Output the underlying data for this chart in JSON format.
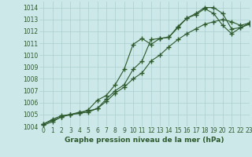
{
  "title": "Graphe pression niveau de la mer (hPa)",
  "xlim": [
    -0.5,
    23
  ],
  "ylim": [
    1004,
    1014.5
  ],
  "yticks": [
    1004,
    1005,
    1006,
    1007,
    1008,
    1009,
    1010,
    1011,
    1012,
    1013,
    1014
  ],
  "xticks": [
    0,
    1,
    2,
    3,
    4,
    5,
    6,
    7,
    8,
    9,
    10,
    11,
    12,
    13,
    14,
    15,
    16,
    17,
    18,
    19,
    20,
    21,
    22,
    23
  ],
  "bg_color": "#cce8e8",
  "grid_color": "#aacfcf",
  "line_color": "#2d5a2d",
  "line1_x": [
    0,
    1,
    2,
    3,
    4,
    5,
    6,
    7,
    8,
    9,
    10,
    11,
    12,
    13,
    14,
    15,
    16,
    17,
    18,
    19,
    20,
    21,
    22,
    23
  ],
  "line1_y": [
    1004.2,
    1004.6,
    1004.9,
    1005.0,
    1005.1,
    1005.4,
    1006.2,
    1006.6,
    1007.5,
    1008.8,
    1010.9,
    1011.4,
    1010.9,
    1011.4,
    1011.5,
    1012.3,
    1013.1,
    1013.5,
    1014.0,
    1014.0,
    1013.5,
    1012.2,
    1012.3,
    1012.6
  ],
  "line2_x": [
    0,
    1,
    2,
    3,
    4,
    5,
    6,
    7,
    8,
    9,
    10,
    11,
    12,
    13,
    14,
    15,
    16,
    17,
    18,
    19,
    20,
    21,
    22,
    23
  ],
  "line2_y": [
    1004.1,
    1004.4,
    1004.8,
    1005.0,
    1005.1,
    1005.2,
    1005.5,
    1006.1,
    1006.8,
    1007.3,
    1008.0,
    1008.5,
    1009.5,
    1010.0,
    1010.7,
    1011.3,
    1011.8,
    1012.2,
    1012.6,
    1012.8,
    1013.0,
    1012.8,
    1012.5,
    1012.7
  ],
  "line3_x": [
    0,
    1,
    2,
    3,
    4,
    5,
    6,
    7,
    8,
    9,
    10,
    11,
    12,
    13,
    14,
    15,
    16,
    17,
    18,
    19,
    20,
    21,
    22,
    23
  ],
  "line3_y": [
    1004.2,
    1004.5,
    1004.8,
    1005.0,
    1005.2,
    1005.3,
    1005.5,
    1006.3,
    1007.0,
    1007.5,
    1008.8,
    1009.5,
    1011.3,
    1011.4,
    1011.5,
    1012.4,
    1013.1,
    1013.4,
    1013.9,
    1013.5,
    1012.5,
    1011.8,
    1012.3,
    1012.7
  ],
  "marker": "+",
  "marker_size": 4,
  "marker_edge_width": 1.0,
  "line_width": 0.8,
  "tick_fontsize": 5.5,
  "xlabel_fontsize": 6.5
}
